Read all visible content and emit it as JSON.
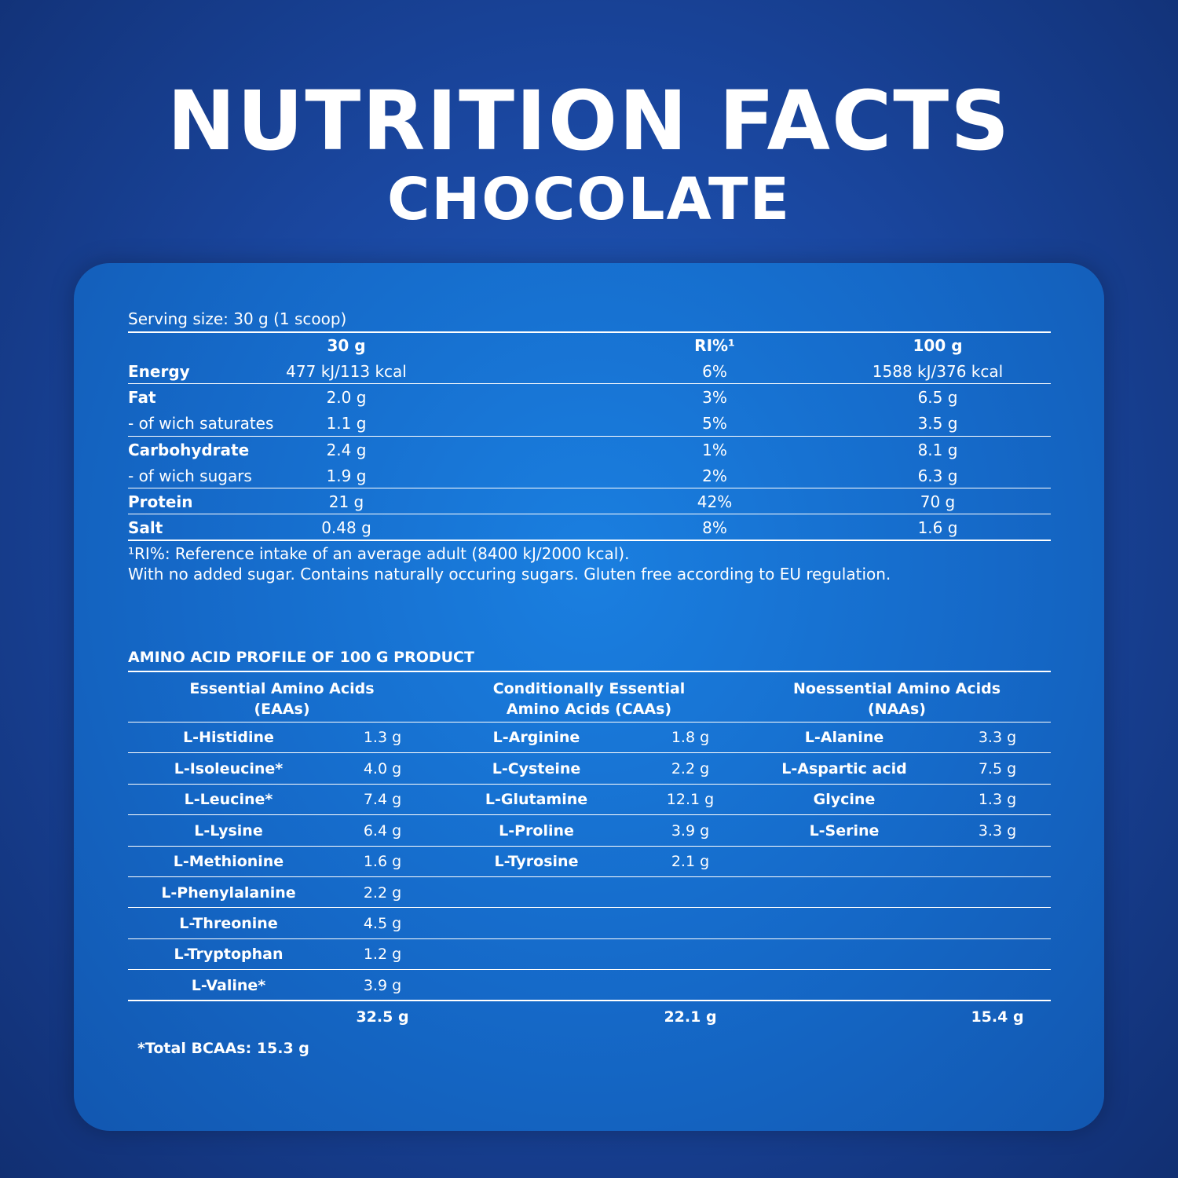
{
  "header": {
    "title": "NUTRITION FACTS",
    "subtitle": "CHOCOLATE"
  },
  "nutrition": {
    "serving_size": "Serving size: 30 g  (1 scoop)",
    "columns": [
      "30 g",
      "RI%¹",
      "100 g"
    ],
    "rows": [
      {
        "label": "Energy",
        "v30": "477 kJ/113 kcal",
        "ri": "6%",
        "v100": "1588 kJ/376 kcal"
      },
      {
        "label": "Fat",
        "v30": "2.0 g",
        "ri": "3%",
        "v100": "6.5 g"
      },
      {
        "label": "- of wich saturates",
        "v30": "1.1 g",
        "ri": "5%",
        "v100": "3.5 g"
      },
      {
        "label": "Carbohydrate",
        "v30": "2.4 g",
        "ri": "1%",
        "v100": "8.1 g"
      },
      {
        "label": "- of wich sugars",
        "v30": "1.9 g",
        "ri": "2%",
        "v100": "6.3 g"
      },
      {
        "label": "Protein",
        "v30": "21 g",
        "ri": "42%",
        "v100": "70 g"
      },
      {
        "label": "Salt",
        "v30": "0.48 g",
        "ri": "8%",
        "v100": "1.6 g"
      }
    ],
    "footnote1": "¹RI%: Reference intake of an average adult (8400 kJ/2000 kcal).",
    "footnote2": "With no added sugar. Contains naturally occuring sugars. Gluten free according to EU regulation."
  },
  "amino": {
    "title": "AMINO ACID PROFILE OF 100 G PRODUCT",
    "groups": [
      {
        "heading_line1": "Essential Amino Acids",
        "heading_line2": "(EAAs)",
        "items": [
          {
            "name": "L-Histidine",
            "value": "1.3 g"
          },
          {
            "name": "L-Isoleucine*",
            "value": "4.0 g"
          },
          {
            "name": "L-Leucine*",
            "value": "7.4 g"
          },
          {
            "name": "L-Lysine",
            "value": "6.4 g"
          },
          {
            "name": "L-Methionine",
            "value": "1.6 g"
          },
          {
            "name": "L-Phenylalanine",
            "value": "2.2 g"
          },
          {
            "name": "L-Threonine",
            "value": "4.5 g"
          },
          {
            "name": "L-Tryptophan",
            "value": "1.2 g"
          },
          {
            "name": "L-Valine*",
            "value": "3.9 g"
          }
        ],
        "total": "32.5 g"
      },
      {
        "heading_line1": "Conditionally Essential",
        "heading_line2": "Amino Acids (CAAs)",
        "items": [
          {
            "name": "L-Arginine",
            "value": "1.8 g"
          },
          {
            "name": "L-Cysteine",
            "value": "2.2 g"
          },
          {
            "name": "L-Glutamine",
            "value": "12.1 g"
          },
          {
            "name": "L-Proline",
            "value": "3.9 g"
          },
          {
            "name": "L-Tyrosine",
            "value": "2.1 g"
          }
        ],
        "total": "22.1 g"
      },
      {
        "heading_line1": "Noessential Amino Acids",
        "heading_line2": "(NAAs)",
        "items": [
          {
            "name": "L-Alanine",
            "value": "3.3 g"
          },
          {
            "name": "L-Aspartic acid",
            "value": "7.5 g"
          },
          {
            "name": "Glycine",
            "value": "1.3 g"
          },
          {
            "name": "L-Serine",
            "value": "3.3 g"
          }
        ],
        "total": "15.4 g"
      }
    ],
    "bcaa_note": "*Total BCAAs: 15.3 g"
  }
}
